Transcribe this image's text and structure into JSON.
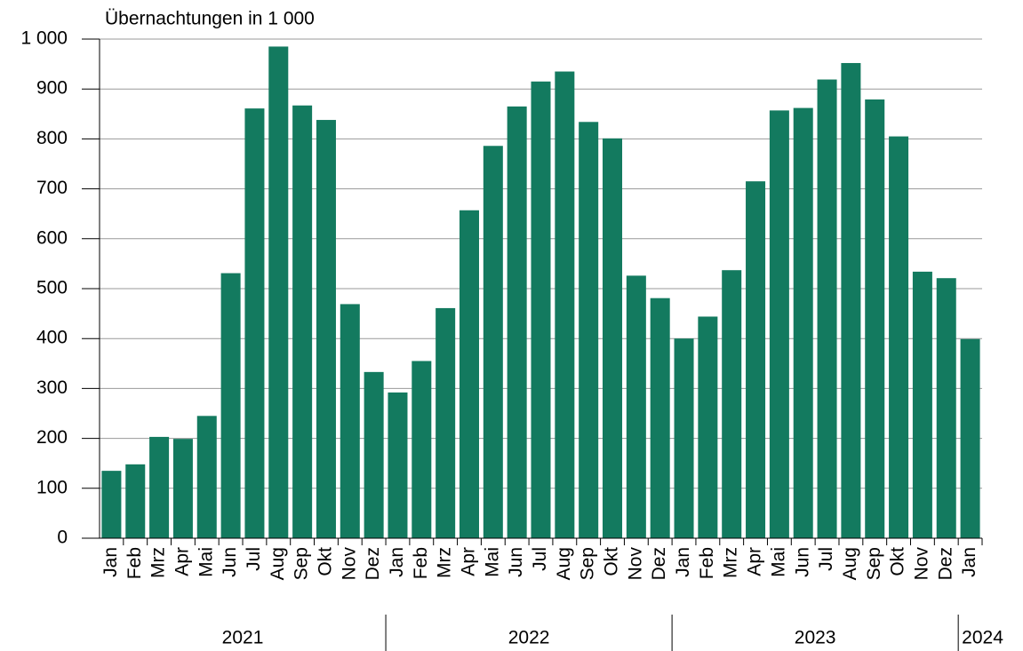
{
  "chart_data": {
    "type": "bar",
    "y_axis_label": "Übernachtungen in 1 000",
    "categories": [
      "Jan",
      "Feb",
      "Mrz",
      "Apr",
      "Mai",
      "Jun",
      "Jul",
      "Aug",
      "Sep",
      "Okt",
      "Nov",
      "Dez",
      "Jan",
      "Feb",
      "Mrz",
      "Apr",
      "Mai",
      "Jun",
      "Jul",
      "Aug",
      "Sep",
      "Okt",
      "Nov",
      "Dez",
      "Jan",
      "Feb",
      "Mrz",
      "Apr",
      "Mai",
      "Jun",
      "Jul",
      "Aug",
      "Sep",
      "Okt",
      "Nov",
      "Dez",
      "Jan"
    ],
    "values": [
      135,
      148,
      203,
      199,
      245,
      531,
      861,
      985,
      867,
      838,
      469,
      333,
      292,
      355,
      461,
      657,
      786,
      865,
      915,
      935,
      834,
      801,
      526,
      481,
      400,
      444,
      537,
      715,
      857,
      862,
      919,
      952,
      879,
      805,
      534,
      521,
      399
    ],
    "category_groups": [
      {
        "label": "2021",
        "size": 12
      },
      {
        "label": "2022",
        "size": 12
      },
      {
        "label": "2023",
        "size": 12
      },
      {
        "label": "2024",
        "size": 1
      }
    ],
    "color": "#137a5f",
    "ylim": [
      0,
      1000
    ],
    "yticks": [
      0,
      100,
      200,
      300,
      400,
      500,
      600,
      700,
      800,
      900,
      {
        "value": 1000,
        "label": "1 000"
      }
    ],
    "grid": true
  }
}
